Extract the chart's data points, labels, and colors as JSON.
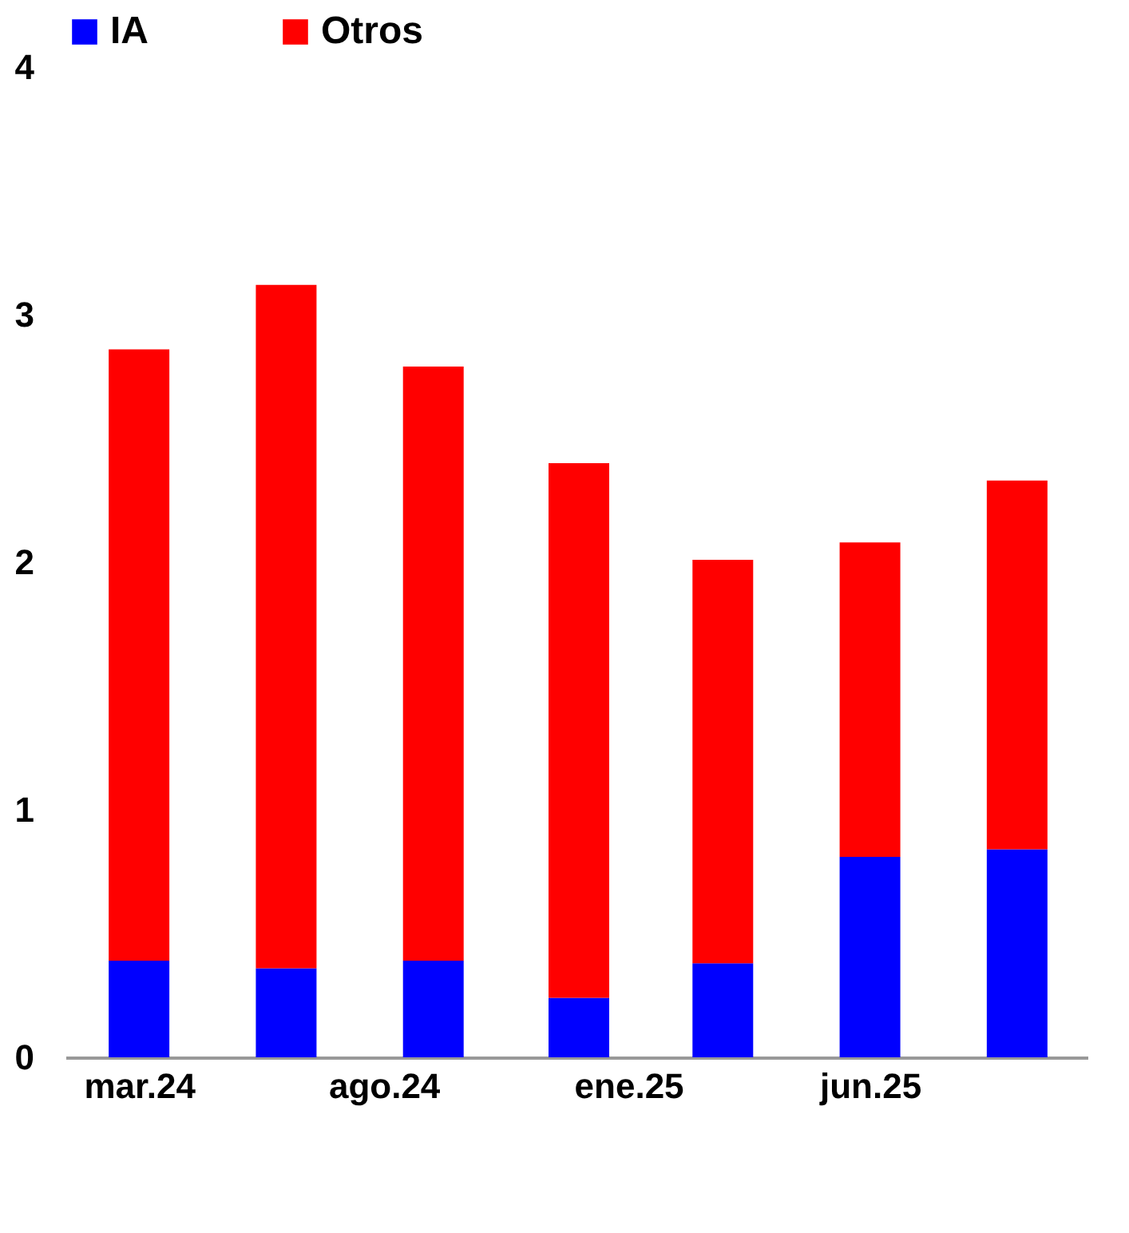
{
  "chart_data": {
    "type": "bar",
    "stacked": true,
    "x": [
      "2024-03",
      "2024-06",
      "2024-09",
      "2024-12",
      "2025-03",
      "2025-06",
      "2025-09"
    ],
    "series": [
      {
        "name": "IA",
        "color": "#0000ff",
        "values": [
          0.39,
          0.36,
          0.39,
          0.24,
          0.38,
          0.81,
          0.84
        ]
      },
      {
        "name": "Otros",
        "color": "#ff0000",
        "values": [
          2.47,
          2.76,
          2.4,
          2.16,
          1.63,
          1.27,
          1.49
        ]
      }
    ],
    "xlim": [
      "2024-01-20",
      "2025-10-10"
    ],
    "xticks": [
      {
        "value": "2024-03",
        "label": "mar.24"
      },
      {
        "value": "2024-08",
        "label": "ago.24"
      },
      {
        "value": "2025-01",
        "label": "ene.25"
      },
      {
        "value": "2025-06",
        "label": "jun.25"
      }
    ],
    "ylim": [
      0,
      4
    ],
    "yticks": [
      0,
      1,
      2,
      3,
      4
    ],
    "legend": "top"
  }
}
